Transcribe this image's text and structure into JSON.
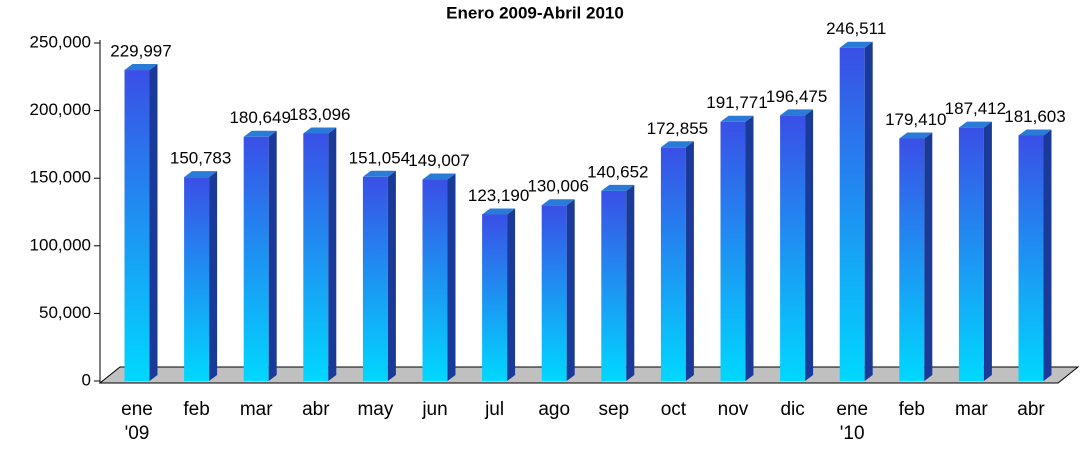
{
  "chart_data": {
    "type": "bar",
    "title": "Enero 2009-Abril 2010",
    "categories": [
      "ene '09",
      "feb",
      "mar",
      "abr",
      "may",
      "jun",
      "jul",
      "ago",
      "sep",
      "oct",
      "nov",
      "dic",
      "ene '10",
      "feb",
      "mar",
      "abr"
    ],
    "values": [
      229997,
      150783,
      180649,
      183096,
      151054,
      149007,
      123190,
      130006,
      140652,
      172855,
      191771,
      196475,
      246511,
      179410,
      187412,
      181603
    ],
    "value_labels": [
      "229,997",
      "150,783",
      "180,649",
      "183,096",
      "151,054",
      "149,007",
      "123,190",
      "130,006",
      "140,652",
      "172,855",
      "191,771",
      "196,475",
      "246,511",
      "179,410",
      "187,412",
      "181,603"
    ],
    "colors": {
      "top": "#3a4fe6",
      "bottom": "#00d8ff"
    },
    "ylim": [
      0,
      250000
    ],
    "yticks": [
      0,
      {
        "value": 50000,
        "label": "50,000"
      },
      {
        "value": 100000,
        "label": "100,000"
      },
      {
        "value": 150000,
        "label": "150,000"
      },
      {
        "value": 200000,
        "label": "200,000"
      },
      {
        "value": 250000,
        "label": "250,000"
      }
    ]
  }
}
